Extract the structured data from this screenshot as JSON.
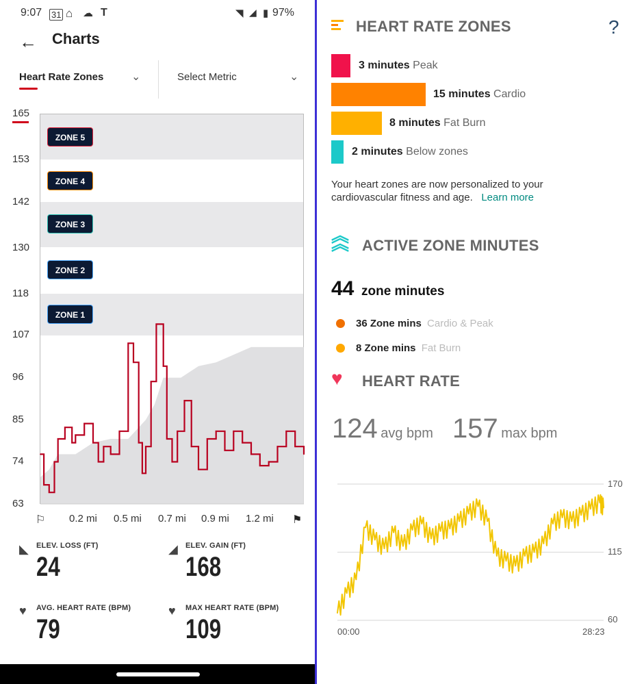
{
  "status_bar": {
    "time": "9:07",
    "battery": "97%"
  },
  "header": {
    "title": "Charts"
  },
  "dropdowns": {
    "metric1": "Heart Rate Zones",
    "metric2": "Select Metric"
  },
  "chart_data": [
    {
      "type": "line",
      "title": "Heart Rate Zones",
      "ylim": [
        63,
        165
      ],
      "y_ticks": [
        "165",
        "153",
        "142",
        "130",
        "118",
        "107",
        "96",
        "85",
        "74",
        "63"
      ],
      "x_ticks": [
        "0.2 mi",
        "0.5 mi",
        "0.7 mi",
        "0.9 mi",
        "1.2 mi"
      ],
      "zones": [
        "ZONE 5",
        "ZONE 4",
        "ZONE 3",
        "ZONE 2",
        "ZONE 1"
      ],
      "series": [
        {
          "name": "Heart rate",
          "x": [
            0,
            0.02,
            0.05,
            0.08,
            0.1,
            0.14,
            0.18,
            0.2,
            0.25,
            0.3,
            0.33,
            0.36,
            0.4,
            0.45,
            0.5,
            0.53,
            0.56,
            0.58,
            0.6,
            0.63,
            0.66,
            0.7,
            0.72,
            0.75,
            0.78,
            0.82,
            0.86,
            0.9,
            0.95,
            1.0,
            1.05,
            1.1,
            1.15,
            1.2,
            1.25,
            1.3,
            1.35,
            1.4,
            1.45,
            1.5
          ],
          "values": [
            76,
            68,
            66,
            74,
            80,
            83,
            79,
            81,
            84,
            79,
            74,
            78,
            76,
            82,
            105,
            100,
            79,
            71,
            78,
            95,
            110,
            99,
            80,
            74,
            82,
            90,
            78,
            72,
            80,
            82,
            77,
            82,
            79,
            76,
            73,
            74,
            78,
            82,
            78,
            76
          ]
        },
        {
          "name": "Elevation",
          "x": [
            0,
            0.05,
            0.1,
            0.2,
            0.3,
            0.4,
            0.5,
            0.6,
            0.65,
            0.7,
            0.8,
            0.9,
            1.0,
            1.1,
            1.2,
            1.3,
            1.5
          ],
          "values": [
            70,
            72,
            76,
            76,
            79,
            80,
            80,
            85,
            89,
            96,
            96,
            99,
            100,
            102,
            104,
            104,
            104
          ]
        }
      ]
    },
    {
      "type": "line",
      "title": "Heart Rate",
      "ylim": [
        60,
        170
      ],
      "y_ticks": [
        "170",
        "115",
        "60"
      ],
      "x_ticks": [
        "00:00",
        "28:23"
      ],
      "series": [
        {
          "name": "bpm",
          "x": [
            0,
            1,
            2,
            3,
            4,
            5,
            6,
            7,
            8,
            9,
            10,
            11,
            12,
            13,
            14,
            15,
            16,
            17,
            18,
            19,
            20,
            21,
            22,
            23,
            24,
            25,
            26,
            27,
            28,
            28.4
          ],
          "values": [
            66,
            82,
            93,
            135,
            125,
            118,
            131,
            120,
            133,
            138,
            126,
            132,
            134,
            140,
            146,
            152,
            140,
            112,
            108,
            104,
            112,
            115,
            122,
            138,
            143,
            140,
            145,
            150,
            155,
            151
          ]
        }
      ]
    }
  ],
  "stats": [
    {
      "label": "ELEV. LOSS (FT)",
      "value": "24"
    },
    {
      "label": "ELEV. GAIN (FT)",
      "value": "168"
    },
    {
      "label": "AVG. HEART RATE (BPM)",
      "value": "79"
    },
    {
      "label": "MAX HEART RATE (BPM)",
      "value": "109"
    }
  ],
  "heart_rate_zones": {
    "title": "HEART RATE ZONES",
    "help": "?",
    "rows": [
      {
        "minutes": "3 minutes",
        "name": "Peak",
        "value": 3,
        "color": "#f0124b"
      },
      {
        "minutes": "15 minutes",
        "name": "Cardio",
        "value": 15,
        "color": "#ff8200"
      },
      {
        "minutes": "8 minutes",
        "name": "Fat Burn",
        "value": 8,
        "color": "#ffb000"
      },
      {
        "minutes": "2 minutes",
        "name": "Below zones",
        "value": 2,
        "color": "#1cc9c9"
      }
    ],
    "description": "Your heart zones are now personalized to your cardiovascular fitness and age.",
    "learn_more": "Learn more"
  },
  "active_zone_minutes": {
    "title": "ACTIVE ZONE MINUTES",
    "total": "44",
    "total_label": "zone minutes",
    "rows": [
      {
        "value": "36 Zone mins",
        "desc": "Cardio & Peak",
        "color": "#f07000"
      },
      {
        "value": "8 Zone mins",
        "desc": "Fat Burn",
        "color": "#ffa800"
      }
    ]
  },
  "heart_rate": {
    "title": "HEART RATE",
    "avg": "124",
    "avg_unit": "avg bpm",
    "max": "157",
    "max_unit": "max bpm"
  },
  "colors": {
    "accent": "#d0021b",
    "hr_line": "#b8001f",
    "hr_yellow": "#f2c500",
    "divider": "#3d2fd6"
  }
}
